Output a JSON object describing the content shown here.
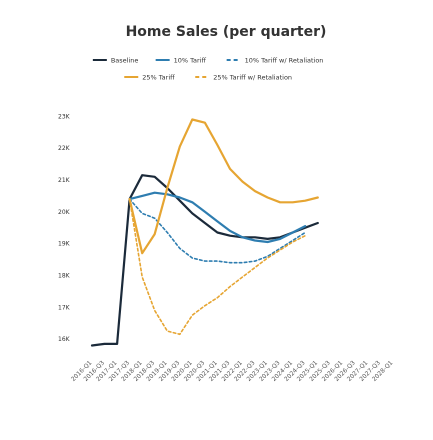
{
  "chart_data": {
    "type": "line",
    "title": "Home Sales (per quarter)",
    "xlabel": "",
    "ylabel": "",
    "ylim": [
      15500,
      23200
    ],
    "yticks": [
      16000,
      17000,
      18000,
      19000,
      20000,
      21000,
      22000,
      23000
    ],
    "ytick_labels": [
      "16K",
      "17K",
      "18K",
      "19K",
      "20K",
      "21K",
      "22K",
      "23K"
    ],
    "x": [
      1,
      2,
      3,
      4,
      5,
      6,
      7,
      8,
      9,
      10,
      11,
      12,
      13,
      14,
      15,
      16,
      17,
      18,
      19,
      20,
      21,
      22,
      23,
      24,
      25
    ],
    "xtick_labels": [
      "2016-Q1",
      "2016-Q3",
      "2017-Q1",
      "2017-Q3",
      "2018-Q1",
      "2018-Q3",
      "2019-Q1",
      "2019-Q3",
      "2020-Q1",
      "2020-Q3",
      "2021-Q1",
      "2021-Q3",
      "2022-Q1",
      "2022-Q3",
      "2023-Q1",
      "2023-Q3",
      "2024-Q1",
      "2024-Q3",
      "2025-Q1",
      "2025-Q3",
      "2026-Q1",
      "2026-Q3",
      "2027-Q1",
      "2027-Q3",
      "2028-Q1"
    ],
    "grid": false,
    "legend": "top",
    "series": [
      {
        "name": "Baseline",
        "color": "#1b2a3a",
        "dash": "solid",
        "values": [
          15800,
          15850,
          15850,
          20400,
          21150,
          21100,
          20750,
          20350,
          19950,
          19650,
          19350,
          19250,
          19200,
          19200,
          19150,
          19200,
          19350,
          19500,
          19650,
          null,
          null,
          null,
          null,
          null,
          null
        ]
      },
      {
        "name": "10% Tariff",
        "color": "#2e7db0",
        "dash": "solid",
        "values": [
          null,
          null,
          null,
          20400,
          20500,
          20600,
          20550,
          20450,
          20300,
          20000,
          19700,
          19400,
          19200,
          19100,
          19050,
          19150,
          19350,
          19550,
          null,
          null,
          null,
          null,
          null,
          null,
          null
        ]
      },
      {
        "name": "10% Tariff w/ Retaliation",
        "color": "#2e7db0",
        "dash": "dashed",
        "values": [
          null,
          null,
          null,
          20400,
          19950,
          19800,
          19350,
          18850,
          18550,
          18450,
          18450,
          18400,
          18400,
          18450,
          18600,
          18850,
          19100,
          19350,
          null,
          null,
          null,
          null,
          null,
          null,
          null
        ]
      },
      {
        "name": "25% Tariff",
        "color": "#e6a532",
        "dash": "solid",
        "values": [
          null,
          null,
          null,
          20400,
          18700,
          19300,
          20750,
          22050,
          22900,
          22800,
          22100,
          21350,
          20950,
          20650,
          20450,
          20300,
          20300,
          20350,
          20450,
          null,
          null,
          null,
          null,
          null,
          null
        ]
      },
      {
        "name": "25% Tariff w/ Retaliation",
        "color": "#e6a532",
        "dash": "dashed",
        "values": [
          null,
          null,
          null,
          20400,
          17950,
          16900,
          16250,
          16150,
          16750,
          17050,
          17300,
          17650,
          17950,
          18250,
          18550,
          18800,
          19050,
          19250,
          null,
          null,
          null,
          null,
          null,
          null,
          null
        ]
      }
    ]
  }
}
